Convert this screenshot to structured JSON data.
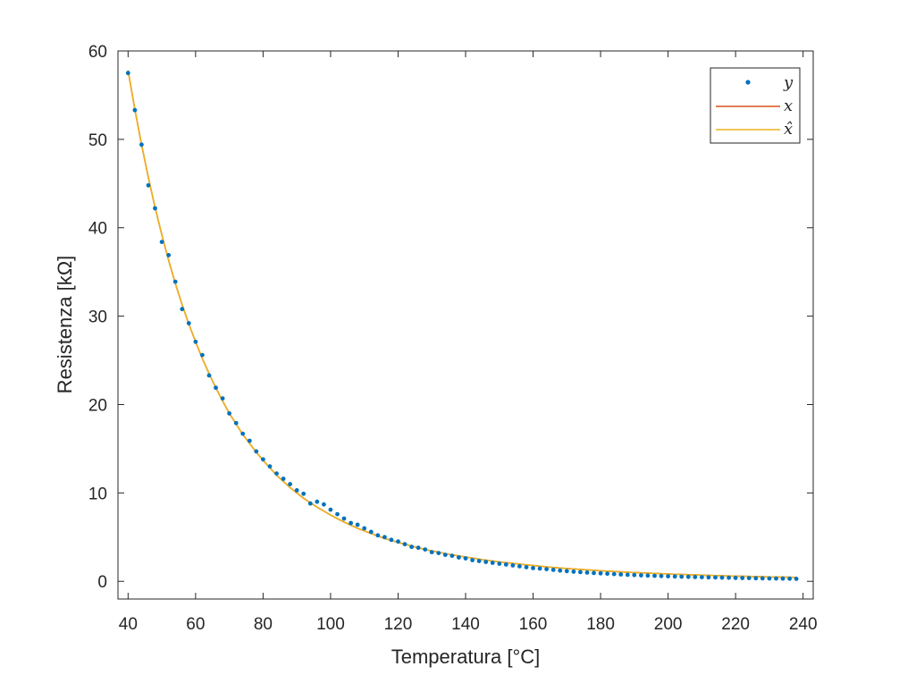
{
  "chart_data": {
    "type": "line",
    "xlabel": "Temperatura [°C]",
    "ylabel": "Resistenza [kΩ]",
    "xlim": [
      37,
      243
    ],
    "ylim": [
      -2,
      60
    ],
    "xticks": [
      40,
      60,
      80,
      100,
      120,
      140,
      160,
      180,
      200,
      220,
      240
    ],
    "yticks": [
      0,
      10,
      20,
      30,
      40,
      50,
      60
    ],
    "grid": false,
    "legend_position": "top-right",
    "colors": {
      "y": "#0072BD",
      "x": "#D95319",
      "xhat": "#EDB120",
      "axis": "#262626"
    },
    "series": [
      {
        "name": "y",
        "kind": "scatter",
        "points": [
          [
            40,
            57.5
          ],
          [
            42,
            53.3
          ],
          [
            44,
            49.4
          ],
          [
            46,
            44.8
          ],
          [
            48,
            42.2
          ],
          [
            50,
            38.4
          ],
          [
            52,
            36.9
          ],
          [
            54,
            33.9
          ],
          [
            56,
            30.8
          ],
          [
            58,
            29.2
          ],
          [
            60,
            27.1
          ],
          [
            62,
            25.6
          ],
          [
            64,
            23.3
          ],
          [
            66,
            21.9
          ],
          [
            68,
            20.7
          ],
          [
            70,
            19.0
          ],
          [
            72,
            17.9
          ],
          [
            74,
            16.7
          ],
          [
            76,
            15.9
          ],
          [
            78,
            14.7
          ],
          [
            80,
            13.8
          ],
          [
            82,
            13.0
          ],
          [
            84,
            12.2
          ],
          [
            86,
            11.6
          ],
          [
            88,
            11.0
          ],
          [
            90,
            10.3
          ],
          [
            92,
            9.9
          ],
          [
            94,
            8.8
          ],
          [
            96,
            9.0
          ],
          [
            98,
            8.7
          ],
          [
            100,
            8.1
          ],
          [
            102,
            7.6
          ],
          [
            104,
            7.1
          ],
          [
            106,
            6.6
          ],
          [
            108,
            6.4
          ],
          [
            110,
            6.0
          ],
          [
            112,
            5.6
          ],
          [
            114,
            5.2
          ],
          [
            116,
            5.0
          ],
          [
            118,
            4.7
          ],
          [
            120,
            4.5
          ],
          [
            122,
            4.2
          ],
          [
            124,
            3.9
          ],
          [
            126,
            3.8
          ],
          [
            128,
            3.6
          ],
          [
            130,
            3.3
          ],
          [
            132,
            3.2
          ],
          [
            134,
            3.0
          ],
          [
            136,
            2.9
          ],
          [
            138,
            2.7
          ],
          [
            140,
            2.6
          ],
          [
            142,
            2.4
          ],
          [
            144,
            2.3
          ],
          [
            146,
            2.2
          ],
          [
            148,
            2.1
          ],
          [
            150,
            2.0
          ],
          [
            152,
            1.9
          ],
          [
            154,
            1.8
          ],
          [
            156,
            1.7
          ],
          [
            158,
            1.6
          ],
          [
            160,
            1.5
          ],
          [
            162,
            1.45
          ],
          [
            164,
            1.38
          ],
          [
            166,
            1.3
          ],
          [
            168,
            1.22
          ],
          [
            170,
            1.16
          ],
          [
            172,
            1.1
          ],
          [
            174,
            1.04
          ],
          [
            176,
            0.99
          ],
          [
            178,
            0.94
          ],
          [
            180,
            0.9
          ],
          [
            182,
            0.86
          ],
          [
            184,
            0.82
          ],
          [
            186,
            0.78
          ],
          [
            188,
            0.74
          ],
          [
            190,
            0.71
          ],
          [
            192,
            0.68
          ],
          [
            194,
            0.65
          ],
          [
            196,
            0.62
          ],
          [
            198,
            0.6
          ],
          [
            200,
            0.57
          ],
          [
            202,
            0.55
          ],
          [
            204,
            0.53
          ],
          [
            206,
            0.51
          ],
          [
            208,
            0.49
          ],
          [
            210,
            0.47
          ],
          [
            212,
            0.45
          ],
          [
            214,
            0.44
          ],
          [
            216,
            0.42
          ],
          [
            218,
            0.41
          ],
          [
            220,
            0.39
          ],
          [
            222,
            0.38
          ],
          [
            224,
            0.37
          ],
          [
            226,
            0.35
          ],
          [
            228,
            0.34
          ],
          [
            230,
            0.33
          ],
          [
            232,
            0.32
          ],
          [
            234,
            0.31
          ],
          [
            236,
            0.3
          ],
          [
            238,
            0.29
          ]
        ]
      },
      {
        "name": "x",
        "kind": "line",
        "points": [
          [
            40,
            57.8
          ],
          [
            42,
            53.4
          ],
          [
            44,
            49.4
          ],
          [
            46,
            45.7
          ],
          [
            48,
            42.3
          ],
          [
            50,
            39.2
          ],
          [
            52,
            36.3
          ],
          [
            54,
            33.7
          ],
          [
            56,
            31.3
          ],
          [
            58,
            29.1
          ],
          [
            60,
            27.1
          ],
          [
            62,
            25.2
          ],
          [
            64,
            23.5
          ],
          [
            66,
            21.9
          ],
          [
            68,
            20.4
          ],
          [
            70,
            19.0
          ],
          [
            72,
            17.8
          ],
          [
            74,
            16.6
          ],
          [
            76,
            15.6
          ],
          [
            78,
            14.6
          ],
          [
            80,
            13.7
          ],
          [
            84,
            12.0
          ],
          [
            88,
            10.6
          ],
          [
            92,
            9.4
          ],
          [
            96,
            8.4
          ],
          [
            100,
            7.5
          ],
          [
            104,
            6.7
          ],
          [
            108,
            6.0
          ],
          [
            112,
            5.4
          ],
          [
            116,
            4.85
          ],
          [
            120,
            4.4
          ],
          [
            124,
            4.0
          ],
          [
            128,
            3.6
          ],
          [
            132,
            3.3
          ],
          [
            136,
            3.0
          ],
          [
            140,
            2.75
          ],
          [
            145,
            2.45
          ],
          [
            150,
            2.2
          ],
          [
            155,
            1.98
          ],
          [
            160,
            1.78
          ],
          [
            165,
            1.6
          ],
          [
            170,
            1.45
          ],
          [
            175,
            1.32
          ],
          [
            180,
            1.2
          ],
          [
            185,
            1.09
          ],
          [
            190,
            0.99
          ],
          [
            195,
            0.91
          ],
          [
            200,
            0.83
          ],
          [
            205,
            0.76
          ],
          [
            210,
            0.7
          ],
          [
            215,
            0.64
          ],
          [
            220,
            0.59
          ],
          [
            225,
            0.55
          ],
          [
            230,
            0.5
          ],
          [
            235,
            0.47
          ],
          [
            238,
            0.45
          ]
        ]
      },
      {
        "name": "x̂",
        "kind": "line",
        "points": [
          [
            40,
            57.8
          ],
          [
            42,
            53.4
          ],
          [
            44,
            49.4
          ],
          [
            46,
            45.7
          ],
          [
            48,
            42.3
          ],
          [
            50,
            39.2
          ],
          [
            52,
            36.3
          ],
          [
            54,
            33.7
          ],
          [
            56,
            31.3
          ],
          [
            58,
            29.1
          ],
          [
            60,
            27.1
          ],
          [
            62,
            25.2
          ],
          [
            64,
            23.5
          ],
          [
            66,
            21.9
          ],
          [
            68,
            20.4
          ],
          [
            70,
            19.0
          ],
          [
            72,
            17.8
          ],
          [
            74,
            16.6
          ],
          [
            76,
            15.6
          ],
          [
            78,
            14.6
          ],
          [
            80,
            13.7
          ],
          [
            84,
            12.0
          ],
          [
            88,
            10.6
          ],
          [
            92,
            9.4
          ],
          [
            96,
            8.4
          ],
          [
            100,
            7.5
          ],
          [
            104,
            6.7
          ],
          [
            108,
            6.0
          ],
          [
            112,
            5.4
          ],
          [
            116,
            4.85
          ],
          [
            120,
            4.4
          ],
          [
            124,
            4.0
          ],
          [
            128,
            3.6
          ],
          [
            132,
            3.3
          ],
          [
            136,
            3.0
          ],
          [
            140,
            2.75
          ],
          [
            145,
            2.45
          ],
          [
            150,
            2.2
          ],
          [
            155,
            1.98
          ],
          [
            160,
            1.78
          ],
          [
            165,
            1.6
          ],
          [
            170,
            1.45
          ],
          [
            175,
            1.32
          ],
          [
            180,
            1.2
          ],
          [
            185,
            1.09
          ],
          [
            190,
            0.99
          ],
          [
            195,
            0.91
          ],
          [
            200,
            0.83
          ],
          [
            205,
            0.76
          ],
          [
            210,
            0.7
          ],
          [
            215,
            0.64
          ],
          [
            220,
            0.59
          ],
          [
            225,
            0.55
          ],
          [
            230,
            0.5
          ],
          [
            235,
            0.47
          ],
          [
            238,
            0.45
          ]
        ]
      }
    ]
  }
}
